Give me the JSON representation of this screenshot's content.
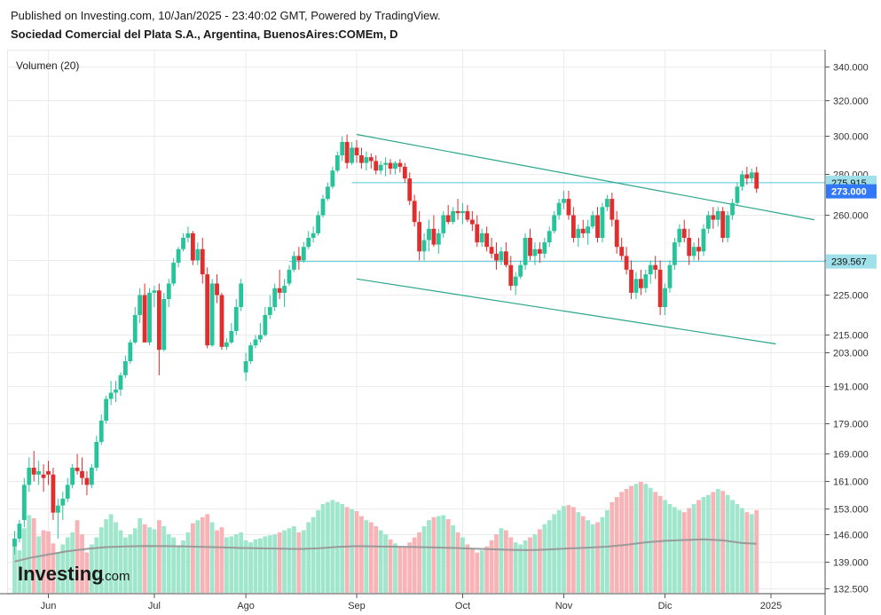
{
  "header": {
    "published": "Published on Investing.com, 10/Jan/2025 - 23:40:02 GMT, Powered by TradingView.",
    "subtitle": "Sociedad Comercial del Plata S.A., Argentina, BuenosAires:COMEm, D"
  },
  "volume_label": "Volumen (20)",
  "logo": {
    "main": "Investing",
    "suffix": ".com"
  },
  "colors": {
    "up": "#27c39a",
    "down": "#e02d2d",
    "vol_up": "#9fe6cd",
    "vol_down": "#f8b3b6",
    "trend": "#2ca58d",
    "hline": "#55c8d8",
    "last_tag": "#3178f6",
    "volma": "#9a9a9a"
  },
  "chart_data": {
    "type": "candlestick",
    "title": "Sociedad Comercial del Plata S.A., Argentina, BuenosAires:COMEm, D",
    "xlabel": "",
    "ylabel": "",
    "y_ticks": [
      "340.000",
      "320.000",
      "300.000",
      "280.000",
      "260.000",
      "240.000",
      "225.000",
      "215.000",
      "203.000",
      "191.000",
      "179.000",
      "169.000",
      "161.000",
      "153.000",
      "146.000",
      "139.000",
      "132.500"
    ],
    "y_tick_values": [
      340,
      320,
      300,
      280,
      260,
      240,
      225,
      215,
      203,
      191,
      179,
      169,
      161,
      153,
      146,
      139,
      132.5
    ],
    "x_ticks": [
      {
        "label": "Jun",
        "day": 0
      },
      {
        "label": "Jul",
        "day": 22
      },
      {
        "label": "Ago",
        "day": 41
      },
      {
        "label": "Sep",
        "day": 64
      },
      {
        "label": "Oct",
        "day": 86
      },
      {
        "label": "Nov",
        "day": 107
      },
      {
        "label": "Dic",
        "day": 128
      },
      {
        "label": "2025",
        "day": 150
      }
    ],
    "price_tags": [
      {
        "label": "275.915",
        "value": 275.915,
        "kind": "line"
      },
      {
        "label": "273.000",
        "value": 273.0,
        "kind": "last"
      },
      {
        "label": "239.567",
        "value": 239.567,
        "kind": "line"
      }
    ],
    "horizontal_lines": [
      {
        "value": 275.915,
        "from_day": 63
      },
      {
        "value": 239.567,
        "from_day": 50
      }
    ],
    "trendlines": [
      {
        "from": [
          64,
          301
        ],
        "to": [
          159,
          258
        ]
      },
      {
        "from": [
          64,
          232
        ],
        "to": [
          151,
          209
        ]
      }
    ],
    "candles": [
      [
        -7,
        143,
        147,
        141,
        145,
        53
      ],
      [
        -6,
        145,
        150,
        144,
        149,
        42
      ],
      [
        -5,
        150,
        162,
        148,
        160,
        64
      ],
      [
        -4,
        160,
        168,
        158,
        165,
        77
      ],
      [
        -3,
        165,
        170,
        161,
        163,
        74
      ],
      [
        -2,
        163,
        167,
        160,
        164,
        56
      ],
      [
        -1,
        163,
        166,
        158,
        162,
        62
      ],
      [
        0,
        164,
        167,
        160,
        163,
        61
      ],
      [
        1,
        163,
        165,
        150,
        152,
        49
      ],
      [
        2,
        152,
        156,
        145,
        154,
        40
      ],
      [
        3,
        154,
        158,
        150,
        156,
        48
      ],
      [
        4,
        156,
        162,
        155,
        160,
        55
      ],
      [
        5,
        160,
        166,
        159,
        165,
        60
      ],
      [
        6,
        165,
        169,
        163,
        164,
        72
      ],
      [
        7,
        164,
        168,
        160,
        162,
        58
      ],
      [
        8,
        162,
        164,
        157,
        160,
        40
      ],
      [
        9,
        160,
        166,
        159,
        165,
        48
      ],
      [
        10,
        165,
        175,
        164,
        173,
        55
      ],
      [
        11,
        173,
        182,
        172,
        180,
        65
      ],
      [
        12,
        180,
        188,
        179,
        187,
        73
      ],
      [
        13,
        187,
        193,
        185,
        189,
        78
      ],
      [
        14,
        189,
        193,
        186,
        190,
        70
      ],
      [
        15,
        190,
        196,
        188,
        195,
        62
      ],
      [
        16,
        195,
        202,
        194,
        200,
        55
      ],
      [
        17,
        200,
        212,
        199,
        210,
        58
      ],
      [
        18,
        210,
        222,
        209,
        220,
        64
      ],
      [
        19,
        220,
        228,
        218,
        225,
        74
      ],
      [
        20,
        225,
        230,
        210,
        210,
        68
      ],
      [
        21,
        210,
        228,
        208,
        226,
        65
      ],
      [
        22,
        226,
        229,
        222,
        227,
        63
      ],
      [
        23,
        227,
        230,
        195,
        205,
        72
      ],
      [
        24,
        205,
        226,
        204,
        224,
        66
      ],
      [
        25,
        224,
        232,
        222,
        230,
        58
      ],
      [
        26,
        230,
        241,
        229,
        239,
        55
      ],
      [
        27,
        239,
        246,
        237,
        245,
        47
      ],
      [
        28,
        245,
        252,
        244,
        250,
        52
      ],
      [
        29,
        250,
        255,
        248,
        252,
        60
      ],
      [
        30,
        252,
        253,
        238,
        240,
        69
      ],
      [
        31,
        240,
        248,
        238,
        245,
        72
      ],
      [
        32,
        245,
        250,
        230,
        234,
        75
      ],
      [
        33,
        234,
        237,
        206,
        208,
        78
      ],
      [
        34,
        208,
        232,
        207,
        230,
        70
      ],
      [
        35,
        230,
        234,
        223,
        225,
        62
      ],
      [
        36,
        225,
        226,
        205,
        207,
        65
      ],
      [
        37,
        207,
        213,
        205,
        210,
        55
      ],
      [
        38,
        210,
        218,
        209,
        216,
        56
      ],
      [
        39,
        216,
        224,
        215,
        222,
        58
      ],
      [
        40,
        222,
        232,
        221,
        230,
        60
      ],
      [
        41,
        196,
        203,
        193,
        200,
        52
      ],
      [
        42,
        200,
        210,
        199,
        208,
        50
      ],
      [
        43,
        208,
        215,
        206,
        212,
        53
      ],
      [
        44,
        212,
        218,
        210,
        215,
        54
      ],
      [
        45,
        215,
        222,
        214,
        220,
        56
      ],
      [
        46,
        220,
        225,
        219,
        222,
        57
      ],
      [
        47,
        222,
        230,
        221,
        228,
        58
      ],
      [
        48,
        228,
        236,
        224,
        226,
        60
      ],
      [
        49,
        226,
        232,
        222,
        229,
        62
      ],
      [
        50,
        230,
        238,
        229,
        236,
        64
      ],
      [
        51,
        236,
        244,
        235,
        242,
        66
      ],
      [
        52,
        242,
        246,
        236,
        240,
        60
      ],
      [
        53,
        240,
        248,
        239,
        246,
        62
      ],
      [
        54,
        246,
        253,
        245,
        250,
        70
      ],
      [
        55,
        250,
        255,
        248,
        252,
        75
      ],
      [
        56,
        252,
        262,
        251,
        260,
        82
      ],
      [
        57,
        260,
        270,
        259,
        268,
        88
      ],
      [
        58,
        268,
        276,
        267,
        274,
        90
      ],
      [
        59,
        274,
        284,
        273,
        282,
        92
      ],
      [
        60,
        282,
        292,
        281,
        290,
        90
      ],
      [
        61,
        290,
        300,
        287,
        297,
        88
      ],
      [
        62,
        297,
        301,
        283,
        286,
        85
      ],
      [
        63,
        286,
        297,
        285,
        294,
        83
      ],
      [
        64,
        294,
        298,
        286,
        290,
        81
      ],
      [
        65,
        290,
        294,
        283,
        286,
        76
      ],
      [
        66,
        286,
        292,
        282,
        289,
        72
      ],
      [
        67,
        289,
        291,
        283,
        287,
        70
      ],
      [
        68,
        287,
        290,
        280,
        282,
        66
      ],
      [
        69,
        282,
        287,
        280,
        285,
        62
      ],
      [
        70,
        285,
        289,
        279,
        286,
        58
      ],
      [
        71,
        286,
        288,
        280,
        283,
        53
      ],
      [
        72,
        283,
        287,
        280,
        286,
        49
      ],
      [
        73,
        286,
        288,
        281,
        284,
        45
      ],
      [
        74,
        284,
        286,
        276,
        278,
        46
      ],
      [
        75,
        278,
        281,
        265,
        267,
        50
      ],
      [
        76,
        267,
        270,
        255,
        257,
        55
      ],
      [
        77,
        257,
        262,
        240,
        244,
        60
      ],
      [
        78,
        244,
        252,
        240,
        249,
        66
      ],
      [
        79,
        249,
        258,
        244,
        254,
        72
      ],
      [
        80,
        254,
        260,
        246,
        247,
        75
      ],
      [
        81,
        247,
        254,
        243,
        252,
        76
      ],
      [
        82,
        252,
        262,
        250,
        260,
        77
      ],
      [
        83,
        260,
        265,
        256,
        257,
        73
      ],
      [
        84,
        257,
        264,
        256,
        262,
        67
      ],
      [
        85,
        262,
        268,
        258,
        261,
        60
      ],
      [
        86,
        261,
        266,
        256,
        262,
        55
      ],
      [
        87,
        262,
        265,
        257,
        258,
        48
      ],
      [
        88,
        258,
        262,
        253,
        256,
        44
      ],
      [
        89,
        256,
        260,
        246,
        248,
        40
      ],
      [
        90,
        248,
        254,
        246,
        252,
        42
      ],
      [
        91,
        252,
        255,
        244,
        246,
        46
      ],
      [
        92,
        246,
        250,
        241,
        243,
        52
      ],
      [
        93,
        243,
        248,
        236,
        240,
        58
      ],
      [
        94,
        240,
        246,
        238,
        244,
        64
      ],
      [
        95,
        244,
        248,
        237,
        238,
        62
      ],
      [
        96,
        238,
        242,
        227,
        229,
        55
      ],
      [
        97,
        229,
        235,
        225,
        233,
        50
      ],
      [
        98,
        233,
        240,
        232,
        238,
        48
      ],
      [
        99,
        238,
        252,
        236,
        250,
        52
      ],
      [
        100,
        250,
        254,
        240,
        242,
        55
      ],
      [
        101,
        242,
        248,
        238,
        245,
        58
      ],
      [
        102,
        245,
        248,
        239,
        243,
        63
      ],
      [
        103,
        243,
        250,
        241,
        248,
        68
      ],
      [
        104,
        248,
        255,
        246,
        253,
        72
      ],
      [
        105,
        253,
        262,
        252,
        260,
        78
      ],
      [
        106,
        260,
        268,
        258,
        266,
        82
      ],
      [
        107,
        266,
        272,
        263,
        268,
        86
      ],
      [
        108,
        268,
        272,
        258,
        260,
        87
      ],
      [
        109,
        260,
        264,
        248,
        250,
        85
      ],
      [
        110,
        250,
        256,
        246,
        254,
        80
      ],
      [
        111,
        254,
        258,
        250,
        252,
        76
      ],
      [
        112,
        252,
        258,
        247,
        255,
        72
      ],
      [
        113,
        255,
        262,
        254,
        260,
        68
      ],
      [
        114,
        260,
        264,
        248,
        250,
        70
      ],
      [
        115,
        250,
        266,
        248,
        264,
        75
      ],
      [
        116,
        264,
        270,
        262,
        268,
        82
      ],
      [
        117,
        268,
        271,
        255,
        258,
        90
      ],
      [
        118,
        258,
        262,
        243,
        246,
        95
      ],
      [
        119,
        246,
        250,
        240,
        242,
        100
      ],
      [
        120,
        242,
        246,
        234,
        236,
        103
      ],
      [
        121,
        236,
        240,
        224,
        226,
        106
      ],
      [
        122,
        226,
        235,
        224,
        232,
        108
      ],
      [
        123,
        232,
        236,
        225,
        228,
        110
      ],
      [
        124,
        228,
        236,
        226,
        234,
        108
      ],
      [
        125,
        234,
        240,
        230,
        238,
        104
      ],
      [
        126,
        238,
        242,
        232,
        236,
        100
      ],
      [
        127,
        236,
        240,
        220,
        222,
        96
      ],
      [
        128,
        222,
        230,
        220,
        228,
        92
      ],
      [
        129,
        228,
        240,
        226,
        238,
        88
      ],
      [
        130,
        238,
        250,
        236,
        248,
        85
      ],
      [
        131,
        248,
        256,
        246,
        254,
        82
      ],
      [
        132,
        254,
        258,
        248,
        250,
        80
      ],
      [
        133,
        250,
        254,
        238,
        242,
        84
      ],
      [
        134,
        242,
        248,
        240,
        246,
        88
      ],
      [
        135,
        246,
        250,
        240,
        244,
        92
      ],
      [
        136,
        244,
        256,
        242,
        254,
        95
      ],
      [
        137,
        254,
        262,
        252,
        260,
        97
      ],
      [
        138,
        260,
        264,
        254,
        258,
        100
      ],
      [
        139,
        258,
        264,
        255,
        262,
        103
      ],
      [
        140,
        262,
        264,
        248,
        250,
        101
      ],
      [
        141,
        250,
        262,
        248,
        260,
        97
      ],
      [
        142,
        260,
        268,
        258,
        266,
        92
      ],
      [
        143,
        266,
        276,
        265,
        274,
        88
      ],
      [
        144,
        274,
        282,
        272,
        280,
        84
      ],
      [
        145,
        280,
        284,
        275,
        278,
        80
      ],
      [
        146,
        278,
        283,
        276,
        281,
        78
      ],
      [
        147,
        281,
        284,
        271,
        273,
        82
      ]
    ],
    "volume_ma": [
      [
        -7,
        31.0
      ],
      [
        -4,
        34.5
      ],
      [
        0,
        37.9
      ],
      [
        4,
        41.3
      ],
      [
        8,
        43.6
      ],
      [
        12,
        45.3
      ],
      [
        16,
        45.9
      ],
      [
        20,
        46.4
      ],
      [
        24,
        46.3
      ],
      [
        28,
        46.1
      ],
      [
        32,
        45.5
      ],
      [
        36,
        45.1
      ],
      [
        40,
        44.4
      ],
      [
        44,
        44.1
      ],
      [
        48,
        43.8
      ],
      [
        52,
        43.5
      ],
      [
        56,
        44.1
      ],
      [
        60,
        45.5
      ],
      [
        64,
        46.3
      ],
      [
        68,
        46.0
      ],
      [
        72,
        45.8
      ],
      [
        76,
        45.4
      ],
      [
        80,
        45.0
      ],
      [
        84,
        44.5
      ],
      [
        88,
        43.8
      ],
      [
        92,
        43.2
      ],
      [
        96,
        42.6
      ],
      [
        100,
        42.3
      ],
      [
        104,
        43.0
      ],
      [
        108,
        44.0
      ],
      [
        112,
        44.8
      ],
      [
        116,
        45.8
      ],
      [
        120,
        47.6
      ],
      [
        124,
        50.1
      ],
      [
        128,
        51.6
      ],
      [
        132,
        52.4
      ],
      [
        136,
        53.0
      ],
      [
        140,
        52.0
      ],
      [
        144,
        49.4
      ],
      [
        147,
        48.6
      ]
    ],
    "volume_ylim": [
      0,
      110
    ],
    "xlim": [
      -8,
      158
    ],
    "ylim": [
      132.5,
      340
    ]
  }
}
